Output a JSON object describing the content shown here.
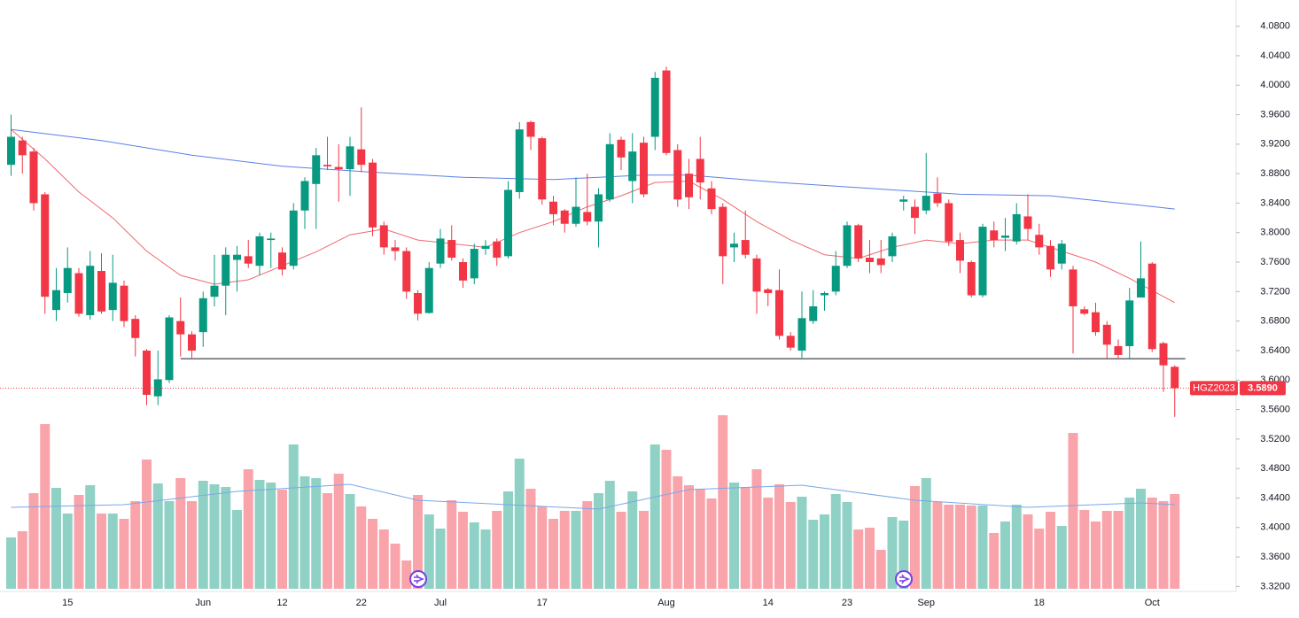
{
  "chart_data": {
    "type": "candlestick",
    "symbol": "HGZ2023",
    "last_value_label": "3.5890",
    "categories": [
      null,
      null,
      null,
      null,
      null,
      "15",
      null,
      null,
      null,
      null,
      null,
      null,
      null,
      null,
      null,
      null,
      null,
      "Jun",
      null,
      null,
      null,
      null,
      null,
      null,
      "12",
      null,
      null,
      null,
      null,
      null,
      null,
      "22",
      null,
      null,
      null,
      null,
      null,
      null,
      "Jul",
      null,
      null,
      null,
      null,
      null,
      null,
      null,
      null,
      "17",
      null,
      null,
      null,
      null,
      null,
      null,
      null,
      null,
      null,
      null,
      "Aug",
      null,
      null,
      null,
      null,
      null,
      null,
      null,
      null,
      "14",
      null,
      null,
      null,
      null,
      null,
      null,
      "23",
      null,
      null,
      null,
      null,
      null,
      null,
      "Sep",
      null,
      null,
      null,
      null,
      null,
      null,
      null,
      null,
      null,
      "18",
      null,
      null,
      null,
      null,
      null,
      null,
      null,
      null,
      null,
      "Oct",
      null,
      null
    ],
    "open": [
      3.892,
      3.925,
      3.91,
      3.852,
      3.695,
      3.718,
      3.745,
      3.688,
      3.748,
      3.695,
      3.728,
      3.683,
      3.64,
      3.578,
      3.6,
      3.68,
      3.662,
      3.665,
      3.713,
      3.728,
      3.763,
      3.768,
      3.755,
      3.79,
      3.773,
      3.755,
      3.83,
      3.866,
      3.892,
      3.889,
      3.886,
      3.913,
      3.895,
      3.81,
      3.78,
      3.775,
      3.718,
      3.691,
      3.758,
      3.79,
      3.76,
      3.738,
      3.778,
      3.788,
      3.768,
      3.855,
      3.95,
      3.928,
      3.842,
      3.83,
      3.812,
      3.828,
      3.815,
      3.845,
      3.926,
      3.87,
      3.922,
      3.93,
      4.02,
      3.912,
      3.88,
      3.9,
      3.86,
      3.835,
      3.78,
      3.79,
      3.765,
      3.723,
      3.722,
      3.66,
      3.64,
      3.68,
      3.715,
      3.72,
      3.755,
      3.81,
      3.766,
      3.765,
      3.768,
      3.842,
      3.835,
      3.83,
      3.853,
      3.84,
      3.79,
      3.76,
      3.715,
      3.803,
      3.793,
      3.788,
      3.822,
      3.797,
      3.782,
      3.758,
      3.75,
      3.696,
      3.692,
      3.675,
      3.646,
      3.646,
      3.712,
      3.758,
      3.65,
      3.618
    ],
    "high": [
      3.96,
      3.93,
      3.915,
      3.855,
      3.752,
      3.78,
      3.752,
      3.775,
      3.772,
      3.77,
      3.735,
      3.688,
      3.642,
      3.64,
      3.688,
      3.712,
      3.666,
      3.72,
      3.77,
      3.78,
      3.782,
      3.79,
      3.8,
      3.8,
      3.78,
      3.84,
      3.875,
      3.915,
      3.93,
      3.92,
      3.93,
      3.97,
      3.9,
      3.815,
      3.79,
      3.78,
      3.722,
      3.76,
      3.805,
      3.81,
      3.765,
      3.785,
      3.79,
      3.792,
      3.87,
      3.95,
      3.952,
      3.93,
      3.85,
      3.832,
      3.875,
      3.88,
      3.86,
      3.935,
      3.93,
      3.935,
      3.93,
      4.018,
      4.025,
      3.92,
      3.9,
      3.93,
      3.87,
      3.84,
      3.8,
      3.83,
      3.77,
      3.725,
      3.75,
      3.665,
      3.72,
      3.722,
      3.72,
      3.775,
      3.815,
      3.812,
      3.79,
      3.79,
      3.8,
      3.85,
      3.845,
      3.908,
      3.875,
      3.845,
      3.8,
      3.762,
      3.812,
      3.815,
      3.82,
      3.84,
      3.852,
      3.812,
      3.79,
      3.79,
      3.755,
      3.7,
      3.705,
      3.68,
      3.655,
      3.725,
      3.788,
      3.76,
      3.652,
      3.62
    ],
    "low": [
      3.877,
      3.88,
      3.83,
      3.69,
      3.68,
      3.705,
      3.686,
      3.682,
      3.69,
      3.68,
      3.672,
      3.632,
      3.566,
      3.566,
      3.596,
      3.632,
      3.63,
      3.645,
      3.7,
      3.688,
      3.72,
      3.752,
      3.742,
      3.752,
      3.742,
      3.75,
      3.805,
      3.805,
      3.885,
      3.842,
      3.85,
      3.882,
      3.795,
      3.77,
      3.762,
      3.71,
      3.681,
      3.69,
      3.752,
      3.762,
      3.725,
      3.73,
      3.77,
      3.755,
      3.765,
      3.846,
      3.912,
      3.838,
      3.81,
      3.8,
      3.808,
      3.81,
      3.78,
      3.842,
      3.885,
      3.84,
      3.848,
      3.912,
      3.905,
      3.835,
      3.832,
      3.845,
      3.825,
      3.73,
      3.76,
      3.765,
      3.69,
      3.7,
      3.655,
      3.64,
      3.63,
      3.676,
      3.694,
      3.715,
      3.752,
      3.76,
      3.745,
      3.745,
      3.76,
      3.83,
      3.798,
      3.825,
      3.835,
      3.782,
      3.745,
      3.712,
      3.712,
      3.78,
      3.775,
      3.784,
      3.79,
      3.77,
      3.74,
      3.75,
      3.636,
      3.688,
      3.66,
      3.628,
      3.628,
      3.628,
      3.712,
      3.638,
      3.584,
      3.55
    ],
    "close": [
      3.93,
      3.905,
      3.84,
      3.713,
      3.722,
      3.752,
      3.69,
      3.755,
      3.693,
      3.732,
      3.68,
      3.657,
      3.58,
      3.601,
      3.685,
      3.662,
      3.64,
      3.711,
      3.728,
      3.77,
      3.77,
      3.758,
      3.795,
      3.792,
      3.75,
      3.83,
      3.87,
      3.905,
      3.89,
      3.886,
      3.917,
      3.892,
      3.807,
      3.78,
      3.775,
      3.72,
      3.69,
      3.752,
      3.792,
      3.766,
      3.735,
      3.778,
      3.782,
      3.766,
      3.858,
      3.94,
      3.93,
      3.845,
      3.825,
      3.812,
      3.835,
      3.815,
      3.852,
      3.92,
      3.902,
      3.91,
      3.852,
      4.01,
      3.908,
      3.845,
      3.848,
      3.868,
      3.832,
      3.768,
      3.785,
      3.77,
      3.72,
      3.718,
      3.66,
      3.644,
      3.684,
      3.7,
      3.718,
      3.755,
      3.81,
      3.765,
      3.76,
      3.756,
      3.795,
      3.845,
      3.82,
      3.85,
      3.84,
      3.788,
      3.762,
      3.715,
      3.808,
      3.79,
      3.796,
      3.825,
      3.805,
      3.78,
      3.75,
      3.785,
      3.7,
      3.69,
      3.665,
      3.648,
      3.634,
      3.708,
      3.738,
      3.642,
      3.62,
      3.589
    ],
    "volume": [
      58,
      65,
      108,
      186,
      114,
      85,
      106,
      117,
      85,
      85,
      79,
      99,
      146,
      119,
      99,
      125,
      99,
      122,
      118,
      115,
      89,
      135,
      123,
      120,
      112,
      163,
      127,
      125,
      108,
      130,
      107,
      93,
      79,
      67,
      51,
      32,
      106,
      84,
      68,
      100,
      87,
      75,
      67,
      88,
      110,
      147,
      113,
      93,
      79,
      88,
      88,
      99,
      108,
      122,
      87,
      110,
      88,
      163,
      157,
      127,
      117,
      113,
      102,
      196,
      120,
      115,
      135,
      103,
      118,
      98,
      104,
      78,
      84,
      107,
      98,
      67,
      69,
      44,
      81,
      77,
      116,
      125,
      98,
      95,
      95,
      94,
      94,
      63,
      76,
      95,
      84,
      68,
      87,
      71,
      176,
      89,
      76,
      88,
      88,
      103,
      113,
      103,
      99,
      107
    ],
    "volume_ma": {
      "x": [
        0,
        10,
        20,
        30,
        36,
        44,
        52,
        60,
        70,
        80,
        90,
        100,
        103
      ],
      "values": [
        92,
        95,
        110,
        118,
        100,
        95,
        90,
        112,
        117,
        100,
        92,
        97,
        95
      ],
      "color": "#7aa7e8"
    },
    "ma_slow": {
      "x": [
        0,
        8,
        16,
        24,
        32,
        40,
        48,
        56,
        60,
        68,
        76,
        84,
        92,
        100,
        103
      ],
      "values": [
        3.94,
        3.925,
        3.905,
        3.89,
        3.882,
        3.875,
        3.872,
        3.878,
        3.878,
        3.868,
        3.86,
        3.852,
        3.85,
        3.837,
        3.832
      ],
      "color": "#5b7fe8"
    },
    "ma_fast": {
      "x": [
        0,
        3,
        6,
        9,
        12,
        15,
        18,
        21,
        24,
        27,
        30,
        33,
        36,
        39,
        42,
        45,
        48,
        51,
        54,
        57,
        60,
        63,
        66,
        69,
        72,
        75,
        78,
        81,
        84,
        87,
        90,
        93,
        96,
        99,
        103
      ],
      "values": [
        3.94,
        3.9,
        3.855,
        3.82,
        3.775,
        3.742,
        3.73,
        3.736,
        3.755,
        3.774,
        3.797,
        3.805,
        3.79,
        3.785,
        3.78,
        3.8,
        3.815,
        3.835,
        3.85,
        3.868,
        3.87,
        3.845,
        3.815,
        3.79,
        3.77,
        3.765,
        3.78,
        3.79,
        3.785,
        3.79,
        3.79,
        3.775,
        3.76,
        3.738,
        3.705
      ],
      "color": "#f0696f"
    },
    "support_line": {
      "value": 3.629,
      "start": 15
    },
    "up_color": "#089981",
    "down_color": "#f23645",
    "ylim": [
      3.2968,
      4.1032
    ],
    "yticks": [
      {
        "value": 4.08,
        "label": "4.0800"
      },
      {
        "value": 4.04,
        "label": "4.0400"
      },
      {
        "value": 4.0,
        "label": "4.0000"
      },
      {
        "value": 3.96,
        "label": "3.9600"
      },
      {
        "value": 3.92,
        "label": "3.9200"
      },
      {
        "value": 3.88,
        "label": "3.8800"
      },
      {
        "value": 3.84,
        "label": "3.8400"
      },
      {
        "value": 3.8,
        "label": "3.8000"
      },
      {
        "value": 3.76,
        "label": "3.7600"
      },
      {
        "value": 3.72,
        "label": "3.7200"
      },
      {
        "value": 3.68,
        "label": "3.6800"
      },
      {
        "value": 3.64,
        "label": "3.6400"
      },
      {
        "value": 3.6,
        "label": "3.6000"
      },
      {
        "value": 3.56,
        "label": "3.5600"
      },
      {
        "value": 3.52,
        "label": "3.5200"
      },
      {
        "value": 3.48,
        "label": "3.4800"
      },
      {
        "value": 3.44,
        "label": "3.4400"
      },
      {
        "value": 3.4,
        "label": "3.4000"
      },
      {
        "value": 3.36,
        "label": "3.3600"
      },
      {
        "value": 3.32,
        "label": "3.3200"
      }
    ]
  }
}
